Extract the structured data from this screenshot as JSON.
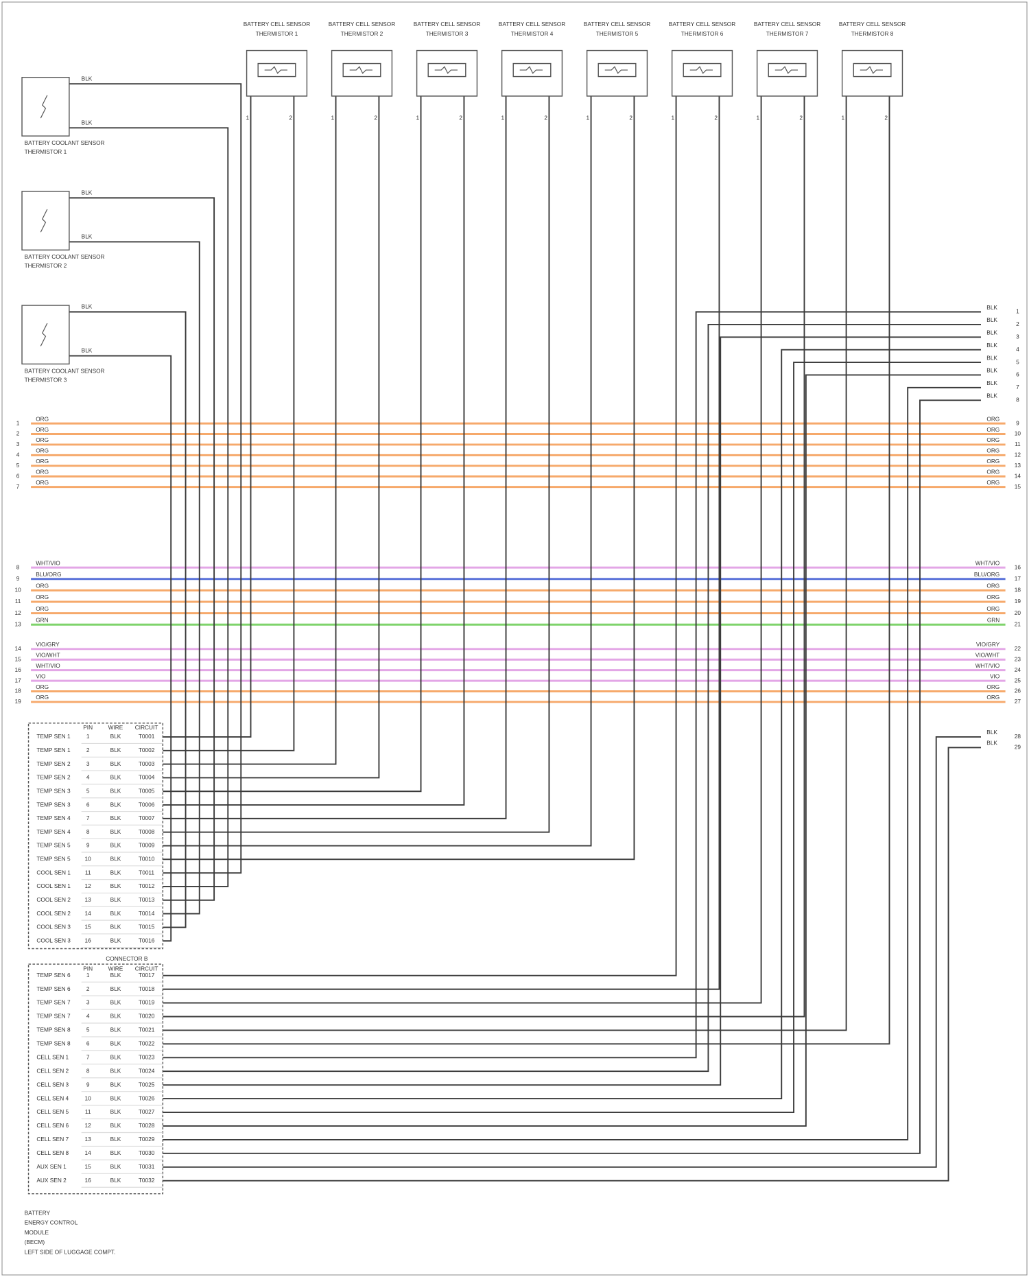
{
  "top_sensors": [
    {
      "name": "BATTERY CELL SENSOR",
      "sub": "THERMISTOR 1",
      "pins": [
        "1",
        "2"
      ]
    },
    {
      "name": "BATTERY CELL SENSOR",
      "sub": "THERMISTOR 2",
      "pins": [
        "1",
        "2"
      ]
    },
    {
      "name": "BATTERY CELL SENSOR",
      "sub": "THERMISTOR 3",
      "pins": [
        "1",
        "2"
      ]
    },
    {
      "name": "BATTERY CELL SENSOR",
      "sub": "THERMISTOR 4",
      "pins": [
        "1",
        "2"
      ]
    },
    {
      "name": "BATTERY CELL SENSOR",
      "sub": "THERMISTOR 5",
      "pins": [
        "1",
        "2"
      ]
    },
    {
      "name": "BATTERY CELL SENSOR",
      "sub": "THERMISTOR 6",
      "pins": [
        "1",
        "2"
      ]
    },
    {
      "name": "BATTERY CELL SENSOR",
      "sub": "THERMISTOR 7",
      "pins": [
        "1",
        "2"
      ]
    },
    {
      "name": "BATTERY CELL SENSOR",
      "sub": "THERMISTOR 8",
      "pins": [
        "1",
        "2"
      ]
    }
  ],
  "left_sensors": [
    {
      "name": "BATTERY COOLANT SENSOR",
      "sub": "THERMISTOR 1",
      "wires": [
        "BLK",
        "BLK"
      ]
    },
    {
      "name": "BATTERY COOLANT SENSOR",
      "sub": "THERMISTOR 2",
      "wires": [
        "BLK",
        "BLK"
      ]
    },
    {
      "name": "BATTERY COOLANT SENSOR",
      "sub": "THERMISTOR 3",
      "wires": [
        "BLK",
        "BLK"
      ]
    }
  ],
  "bus_groups": [
    [
      {
        "left_pin": "1",
        "left_label": "ORG",
        "right_label": "ORG",
        "right_pin": "9",
        "color": "#f6a96b"
      },
      {
        "left_pin": "2",
        "left_label": "ORG",
        "right_label": "ORG",
        "right_pin": "10",
        "color": "#f6a96b"
      },
      {
        "left_pin": "3",
        "left_label": "ORG",
        "right_label": "ORG",
        "right_pin": "11",
        "color": "#f6a96b"
      },
      {
        "left_pin": "4",
        "left_label": "ORG",
        "right_label": "ORG",
        "right_pin": "12",
        "color": "#f6a96b"
      },
      {
        "left_pin": "5",
        "left_label": "ORG",
        "right_label": "ORG",
        "right_pin": "13",
        "color": "#f6a96b"
      },
      {
        "left_pin": "6",
        "left_label": "ORG",
        "right_label": "ORG",
        "right_pin": "14",
        "color": "#f6a96b"
      },
      {
        "left_pin": "7",
        "left_label": "ORG",
        "right_label": "ORG",
        "right_pin": "15",
        "color": "#f6a96b"
      }
    ],
    [
      {
        "left_pin": "8",
        "left_label": "WHT/VIO",
        "right_label": "WHT/VIO",
        "right_pin": "16",
        "color": "#e3a6e6"
      },
      {
        "left_pin": "9",
        "left_label": "BLU/ORG",
        "right_label": "BLU/ORG",
        "right_pin": "17",
        "color": "#5b73d9"
      },
      {
        "left_pin": "10",
        "left_label": "ORG",
        "right_label": "ORG",
        "right_pin": "18",
        "color": "#f6a96b"
      },
      {
        "left_pin": "11",
        "left_label": "ORG",
        "right_label": "ORG",
        "right_pin": "19",
        "color": "#f6a96b"
      },
      {
        "left_pin": "12",
        "left_label": "ORG",
        "right_label": "ORG",
        "right_pin": "20",
        "color": "#f6a96b"
      },
      {
        "left_pin": "13",
        "left_label": "GRN",
        "right_label": "GRN",
        "right_pin": "21",
        "color": "#7fd36b"
      }
    ],
    [
      {
        "left_pin": "14",
        "left_label": "VIO/GRY",
        "right_label": "VIO/GRY",
        "right_pin": "22",
        "color": "#e3a6e6"
      },
      {
        "left_pin": "15",
        "left_label": "VIO/WHT",
        "right_label": "VIO/WHT",
        "right_pin": "23",
        "color": "#e3a6e6"
      },
      {
        "left_pin": "16",
        "left_label": "WHT/VIO",
        "right_label": "WHT/VIO",
        "right_pin": "24",
        "color": "#e3a6e6"
      },
      {
        "left_pin": "17",
        "left_label": "VIO",
        "right_label": "VIO",
        "right_pin": "25",
        "color": "#e3a6e6"
      },
      {
        "left_pin": "18",
        "left_label": "ORG",
        "right_label": "ORG",
        "right_pin": "26",
        "color": "#f6a96b"
      },
      {
        "left_pin": "19",
        "left_label": "ORG",
        "right_label": "ORG",
        "right_pin": "27",
        "color": "#f6a96b"
      }
    ]
  ],
  "right_wires": [
    {
      "label": "BLK",
      "pin": "1"
    },
    {
      "label": "BLK",
      "pin": "2"
    },
    {
      "label": "BLK",
      "pin": "3"
    },
    {
      "label": "BLK",
      "pin": "4"
    },
    {
      "label": "BLK",
      "pin": "5"
    },
    {
      "label": "BLK",
      "pin": "6"
    },
    {
      "label": "BLK",
      "pin": "7"
    },
    {
      "label": "BLK",
      "pin": "8"
    }
  ],
  "aux_wires": [
    {
      "label": "BLK",
      "pin": "28"
    },
    {
      "label": "BLK",
      "pin": "29"
    }
  ],
  "connector_a": {
    "header": [
      "PIN",
      "WIRE",
      "CIRCUIT"
    ],
    "rows": [
      {
        "name": "TEMP SEN 1",
        "pin": "1",
        "wire": "BLK",
        "circuit": "T0001"
      },
      {
        "name": "TEMP SEN 1",
        "pin": "2",
        "wire": "BLK",
        "circuit": "T0002"
      },
      {
        "name": "TEMP SEN 2",
        "pin": "3",
        "wire": "BLK",
        "circuit": "T0003"
      },
      {
        "name": "TEMP SEN 2",
        "pin": "4",
        "wire": "BLK",
        "circuit": "T0004"
      },
      {
        "name": "TEMP SEN 3",
        "pin": "5",
        "wire": "BLK",
        "circuit": "T0005"
      },
      {
        "name": "TEMP SEN 3",
        "pin": "6",
        "wire": "BLK",
        "circuit": "T0006"
      },
      {
        "name": "TEMP SEN 4",
        "pin": "7",
        "wire": "BLK",
        "circuit": "T0007"
      },
      {
        "name": "TEMP SEN 4",
        "pin": "8",
        "wire": "BLK",
        "circuit": "T0008"
      },
      {
        "name": "TEMP SEN 5",
        "pin": "9",
        "wire": "BLK",
        "circuit": "T0009"
      },
      {
        "name": "TEMP SEN 5",
        "pin": "10",
        "wire": "BLK",
        "circuit": "T0010"
      },
      {
        "name": "COOL SEN 1",
        "pin": "11",
        "wire": "BLK",
        "circuit": "T0011"
      },
      {
        "name": "COOL SEN 1",
        "pin": "12",
        "wire": "BLK",
        "circuit": "T0012"
      },
      {
        "name": "COOL SEN 2",
        "pin": "13",
        "wire": "BLK",
        "circuit": "T0013"
      },
      {
        "name": "COOL SEN 2",
        "pin": "14",
        "wire": "BLK",
        "circuit": "T0014"
      },
      {
        "name": "COOL SEN 3",
        "pin": "15",
        "wire": "BLK",
        "circuit": "T0015"
      },
      {
        "name": "COOL SEN 3",
        "pin": "16",
        "wire": "BLK",
        "circuit": "T0016"
      }
    ]
  },
  "connector_b_title": "CONNECTOR B",
  "connector_b": {
    "header": [
      "PIN",
      "WIRE",
      "CIRCUIT"
    ],
    "rows": [
      {
        "name": "TEMP SEN 6",
        "pin": "1",
        "wire": "BLK",
        "circuit": "T0017"
      },
      {
        "name": "TEMP SEN 6",
        "pin": "2",
        "wire": "BLK",
        "circuit": "T0018"
      },
      {
        "name": "TEMP SEN 7",
        "pin": "3",
        "wire": "BLK",
        "circuit": "T0019"
      },
      {
        "name": "TEMP SEN 7",
        "pin": "4",
        "wire": "BLK",
        "circuit": "T0020"
      },
      {
        "name": "TEMP SEN 8",
        "pin": "5",
        "wire": "BLK",
        "circuit": "T0021"
      },
      {
        "name": "TEMP SEN 8",
        "pin": "6",
        "wire": "BLK",
        "circuit": "T0022"
      },
      {
        "name": "CELL SEN 1",
        "pin": "7",
        "wire": "BLK",
        "circuit": "T0023"
      },
      {
        "name": "CELL SEN 2",
        "pin": "8",
        "wire": "BLK",
        "circuit": "T0024"
      },
      {
        "name": "CELL SEN 3",
        "pin": "9",
        "wire": "BLK",
        "circuit": "T0025"
      },
      {
        "name": "CELL SEN 4",
        "pin": "10",
        "wire": "BLK",
        "circuit": "T0026"
      },
      {
        "name": "CELL SEN 5",
        "pin": "11",
        "wire": "BLK",
        "circuit": "T0027"
      },
      {
        "name": "CELL SEN 6",
        "pin": "12",
        "wire": "BLK",
        "circuit": "T0028"
      },
      {
        "name": "CELL SEN 7",
        "pin": "13",
        "wire": "BLK",
        "circuit": "T0029"
      },
      {
        "name": "CELL SEN 8",
        "pin": "14",
        "wire": "BLK",
        "circuit": "T0030"
      },
      {
        "name": "AUX SEN 1",
        "pin": "15",
        "wire": "BLK",
        "circuit": "T0031"
      },
      {
        "name": "AUX SEN 2",
        "pin": "16",
        "wire": "BLK",
        "circuit": "T0032"
      }
    ]
  },
  "footer": [
    "BATTERY",
    "ENERGY CONTROL",
    "MODULE",
    "(BECM)",
    "LEFT SIDE OF LUGGAGE COMPT."
  ]
}
